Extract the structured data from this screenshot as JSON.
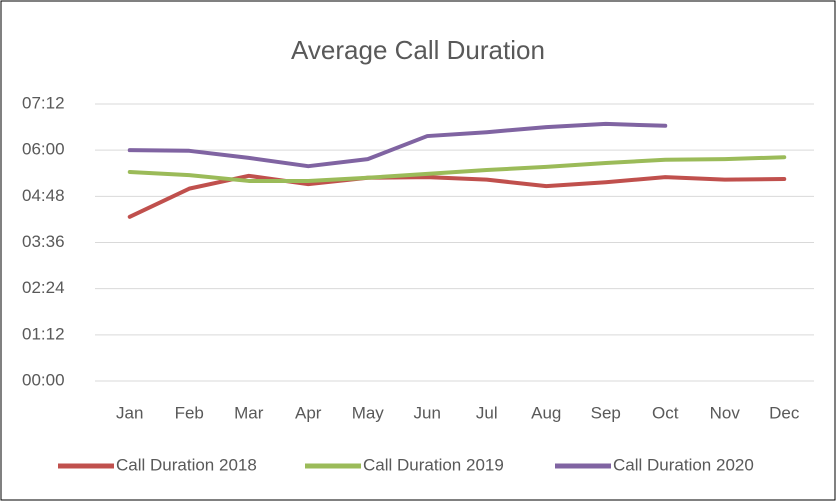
{
  "chart_data": {
    "type": "line",
    "title": "Average Call Duration",
    "categories": [
      "Jan",
      "Feb",
      "Mar",
      "Apr",
      "May",
      "Jun",
      "Jul",
      "Aug",
      "Sep",
      "Oct",
      "Nov",
      "Dec"
    ],
    "series": [
      {
        "name": "Call Duration 2018",
        "color": "#c0504d",
        "values": [
          256,
          300,
          320,
          307,
          317,
          318,
          314,
          304,
          310,
          318,
          314,
          315
        ]
      },
      {
        "name": "Call Duration 2019",
        "color": "#9bbb59",
        "values": [
          326,
          321,
          312,
          312,
          317,
          323,
          329,
          334,
          340,
          345,
          346,
          349
        ]
      },
      {
        "name": "Call Duration 2020",
        "color": "#8064a2",
        "values": [
          360,
          359,
          348,
          335,
          346,
          382,
          388,
          396,
          401,
          398,
          null,
          null
        ]
      }
    ],
    "ylim": [
      0,
      432
    ],
    "yticks": [
      {
        "value": 0,
        "label": "00:00"
      },
      {
        "value": 72,
        "label": "01:12"
      },
      {
        "value": 144,
        "label": "02:24"
      },
      {
        "value": 216,
        "label": "03:36"
      },
      {
        "value": 288,
        "label": "04:48"
      },
      {
        "value": 360,
        "label": "06:00"
      },
      {
        "value": 432,
        "label": "07:12"
      }
    ],
    "grid": true,
    "legend": "bottom"
  }
}
